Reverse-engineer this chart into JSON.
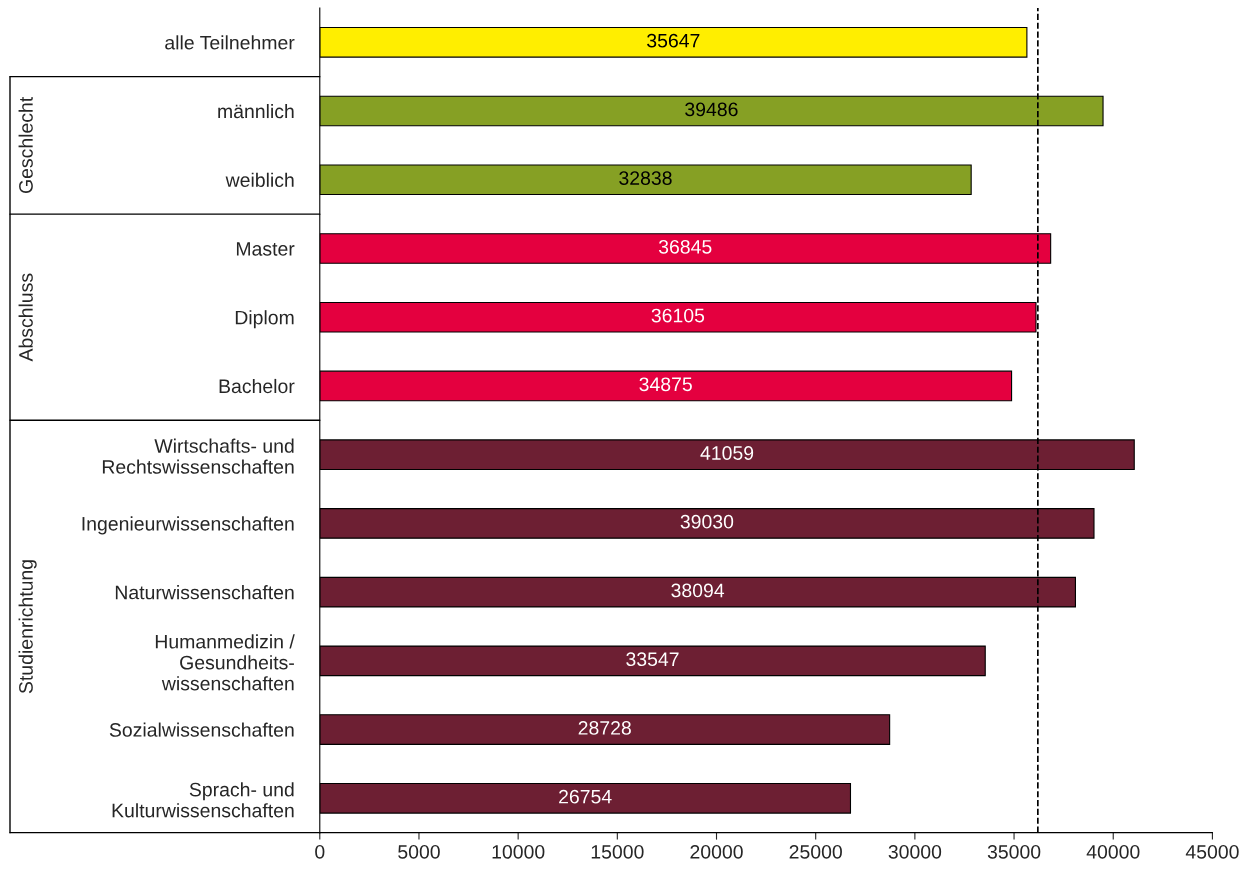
{
  "chart_data": {
    "type": "bar",
    "orientation": "horizontal",
    "categories": [
      "alle Teilnehmer",
      "männlich",
      "weiblich",
      "Master",
      "Diplom",
      "Bachelor",
      "Wirtschafts- und\nRechtswissenschaften",
      "Ingenieurwissenschaften",
      "Naturwissenschaften",
      "Humanmedizin /\nGesundheits-\nwissenschaften",
      "Sozialwissenschaften",
      "Sprach- und\nKulturwissenschaften"
    ],
    "values": [
      35647,
      39486,
      32838,
      36845,
      36105,
      34875,
      41059,
      39030,
      38094,
      33547,
      28728,
      26754
    ],
    "colors": [
      "#ffee00",
      "#86a024",
      "#86a024",
      "#e4003f",
      "#e4003f",
      "#e4003f",
      "#6d1f33",
      "#6d1f33",
      "#6d1f33",
      "#6d1f33",
      "#6d1f33",
      "#6d1f33"
    ],
    "data_labels": true,
    "xlim": [
      0,
      45000
    ],
    "xticks": [
      0,
      5000,
      10000,
      15000,
      20000,
      25000,
      30000,
      35000,
      40000,
      45000
    ],
    "ref_lines": [
      {
        "axis": "x",
        "value": 36200,
        "line_style": "dashed",
        "color": "#000000"
      }
    ],
    "annotations": [
      "Geschlecht",
      "Abschluss",
      "Studienrichtung"
    ],
    "grid": false,
    "legend": false
  }
}
